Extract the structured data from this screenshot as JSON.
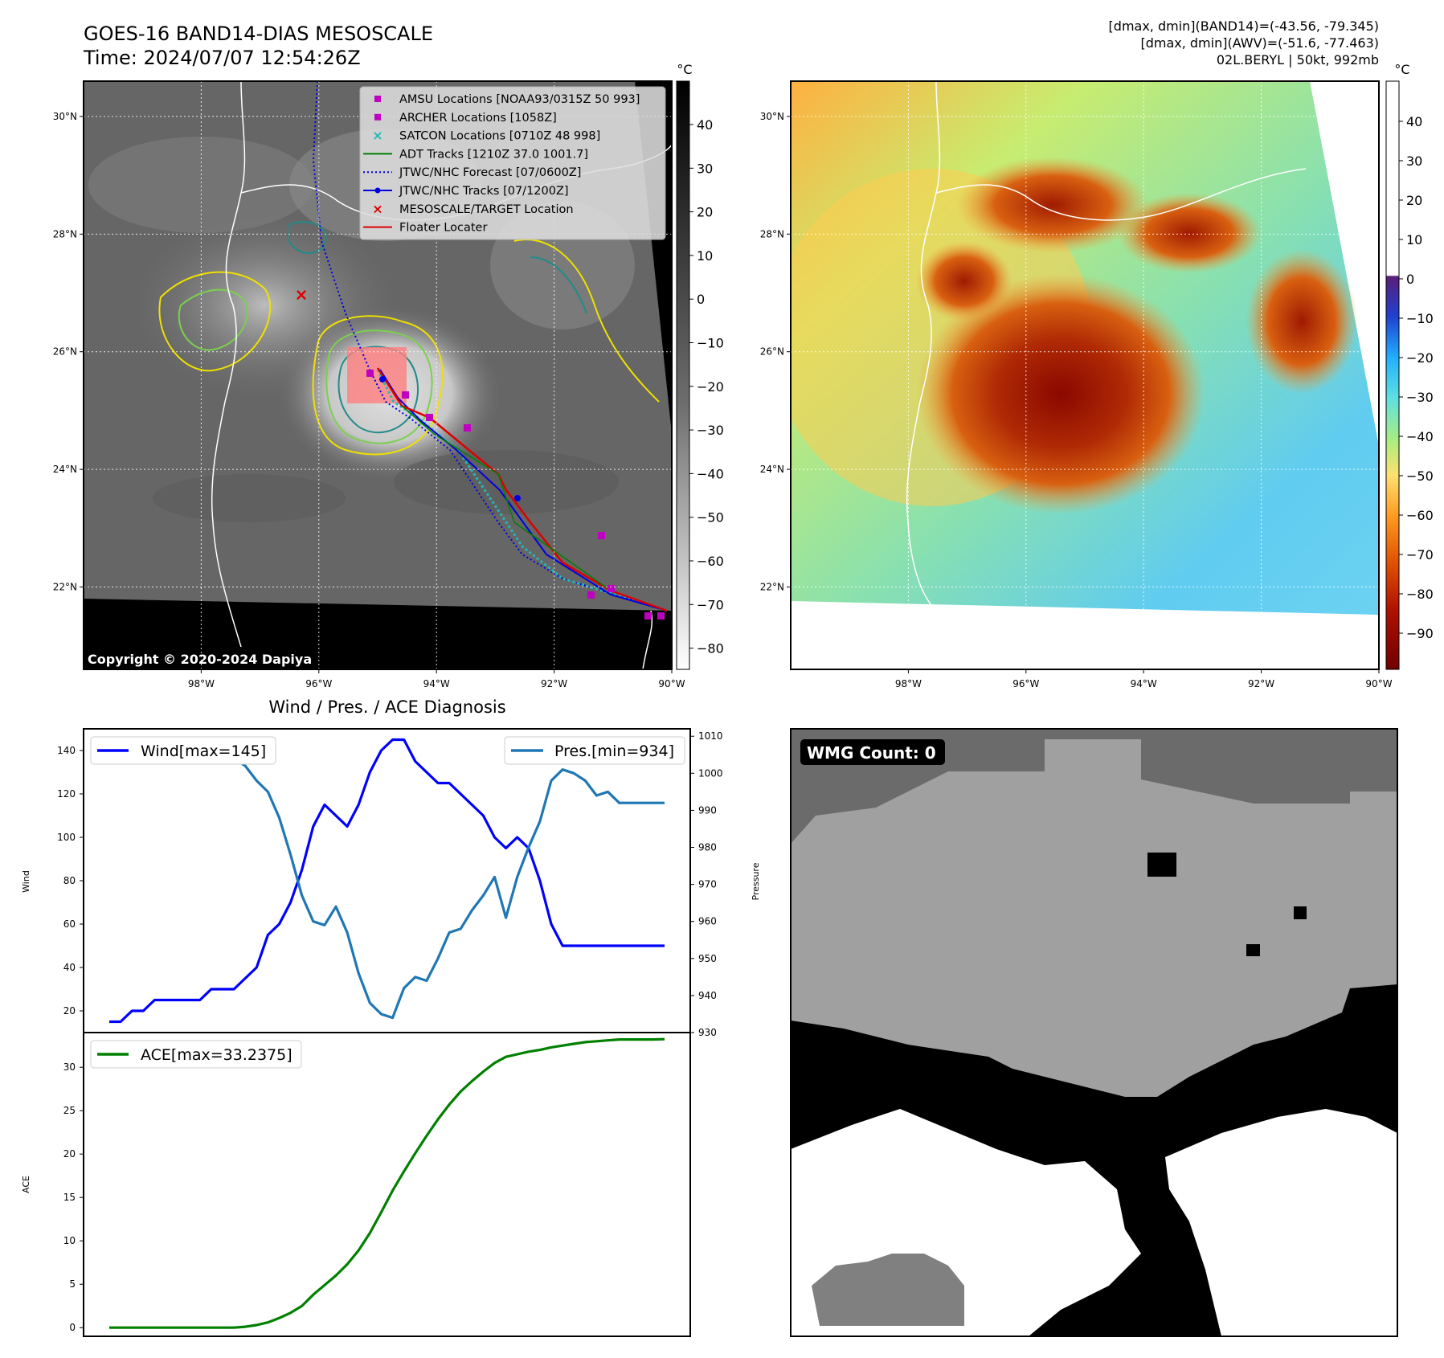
{
  "header": {
    "title": "GOES-16 BAND14-DIAS MESOSCALE",
    "time": "Time: 2024/07/07 12:54:26Z",
    "info_lines": [
      "[dmax, dmin](BAND14)=(-43.56, -79.345)",
      "[dmax, dmin](AWV)=(-51.6, -77.463)",
      "02L.BERYL | 50kt, 992mb"
    ]
  },
  "map_axes": {
    "lon_labels": [
      "98°W",
      "96°W",
      "94°W",
      "92°W",
      "90°W"
    ],
    "lon_values": [
      -98,
      -96,
      -94,
      -92,
      -90
    ],
    "lat_labels": [
      "30°N",
      "28°N",
      "26°N",
      "24°N",
      "22°N"
    ],
    "lat_values": [
      30,
      28,
      26,
      24,
      22
    ],
    "lon_range": [
      -100,
      -90
    ],
    "lat_range": [
      20.6,
      30.6
    ]
  },
  "ir_panel": {
    "copyright": "Copyright © 2020-2024 Dapiya",
    "colorbar_unit": "°C",
    "colorbar_ticks": [
      "40",
      "30",
      "20",
      "10",
      "0",
      "−10",
      "−20",
      "−30",
      "−40",
      "−50",
      "−60",
      "−70",
      "−80"
    ],
    "legend": [
      {
        "label": "AMSU Locations [NOAA93/0315Z 50 993]",
        "marker": "square",
        "color": "#c000c0"
      },
      {
        "label": "ARCHER Locations [1058Z]",
        "marker": "square",
        "color": "#c000c0"
      },
      {
        "label": "SATCON Locations [0710Z 48 998]",
        "marker": "x",
        "color": "#22b8b8"
      },
      {
        "label": "ADT Tracks [1210Z 37.0 1001.7]",
        "marker": "line",
        "color": "#008000"
      },
      {
        "label": "JTWC/NHC Forecast [07/0600Z]",
        "marker": "dotted",
        "color": "#0000dd"
      },
      {
        "label": "JTWC/NHC Tracks [07/1200Z]",
        "marker": "line-dot",
        "color": "#0000dd"
      },
      {
        "label": "MESOSCALE/TARGET Location",
        "marker": "x",
        "color": "#dd0000"
      },
      {
        "label": "Floater Locater",
        "marker": "line",
        "color": "#dd0000"
      }
    ]
  },
  "wv_panel": {
    "colorbar_unit": "°C",
    "colorbar_ticks": [
      "40",
      "30",
      "20",
      "10",
      "0",
      "−10",
      "−20",
      "−30",
      "−40",
      "−50",
      "−60",
      "−70",
      "−80",
      "−90"
    ]
  },
  "chart_data": [
    {
      "type": "line",
      "title": "Wind / Pres. / ACE Diagnosis",
      "ylabel": "Wind",
      "y2label": "Pressure",
      "ylim": [
        10,
        150
      ],
      "y2lim": [
        930,
        1012
      ],
      "yticks": [
        "20",
        "40",
        "60",
        "80",
        "100",
        "120",
        "140"
      ],
      "y2ticks": [
        "930",
        "940",
        "950",
        "960",
        "970",
        "980",
        "990",
        "1000",
        "1010"
      ],
      "x": [
        0,
        1,
        2,
        3,
        4,
        5,
        6,
        7,
        8,
        9,
        10,
        11,
        12,
        13,
        14,
        15,
        16,
        17,
        18,
        19,
        20,
        21,
        22,
        23,
        24,
        25,
        26,
        27,
        28,
        29,
        30,
        31,
        32,
        33,
        34,
        35,
        36,
        37,
        38,
        39,
        40,
        41,
        42,
        43,
        44,
        45,
        46,
        47,
        48,
        49
      ],
      "series": [
        {
          "name": "Wind[max=145]",
          "axis": "left",
          "color": "#0000ff",
          "values": [
            15,
            15,
            20,
            20,
            25,
            25,
            25,
            25,
            25,
            30,
            30,
            30,
            35,
            40,
            55,
            60,
            70,
            85,
            105,
            115,
            110,
            105,
            115,
            130,
            140,
            145,
            145,
            135,
            130,
            125,
            125,
            120,
            115,
            110,
            100,
            95,
            100,
            95,
            80,
            60,
            50,
            50,
            50,
            50,
            50,
            50,
            50,
            50,
            50,
            50
          ]
        },
        {
          "name": "Pres.[min=934]",
          "axis": "right",
          "color": "#1f77b4",
          "values": [
            1009,
            1009,
            1008,
            1008,
            1007,
            1007,
            1006,
            1006,
            1005,
            1005,
            1004,
            1004,
            1002,
            998,
            995,
            988,
            978,
            967,
            960,
            959,
            964,
            957,
            946,
            938,
            935,
            934,
            942,
            945,
            944,
            950,
            957,
            958,
            963,
            967,
            972,
            961,
            972,
            980,
            987,
            998,
            1001,
            1000,
            998,
            994,
            995,
            992,
            992,
            992,
            992,
            992
          ]
        }
      ]
    },
    {
      "type": "line",
      "ylabel": "ACE",
      "ylim": [
        -1,
        34
      ],
      "yticks": [
        "0",
        "5",
        "10",
        "15",
        "20",
        "25",
        "30"
      ],
      "series": [
        {
          "name": "ACE[max=33.2375]",
          "color": "#008000",
          "values": [
            0,
            0,
            0,
            0,
            0,
            0,
            0,
            0,
            0,
            0,
            0,
            0,
            0.1,
            0.3,
            0.6,
            1.1,
            1.7,
            2.5,
            3.8,
            4.9,
            6.0,
            7.3,
            8.9,
            10.9,
            13.3,
            15.8,
            18.0,
            20.1,
            22.1,
            24.0,
            25.7,
            27.2,
            28.4,
            29.5,
            30.5,
            31.2,
            31.5,
            31.8,
            32.0,
            32.3,
            32.5,
            32.7,
            32.9,
            33.0,
            33.1,
            33.2,
            33.2,
            33.2,
            33.2,
            33.2375
          ]
        }
      ]
    }
  ],
  "wmg_panel": {
    "label": "WMG Count: 0"
  }
}
